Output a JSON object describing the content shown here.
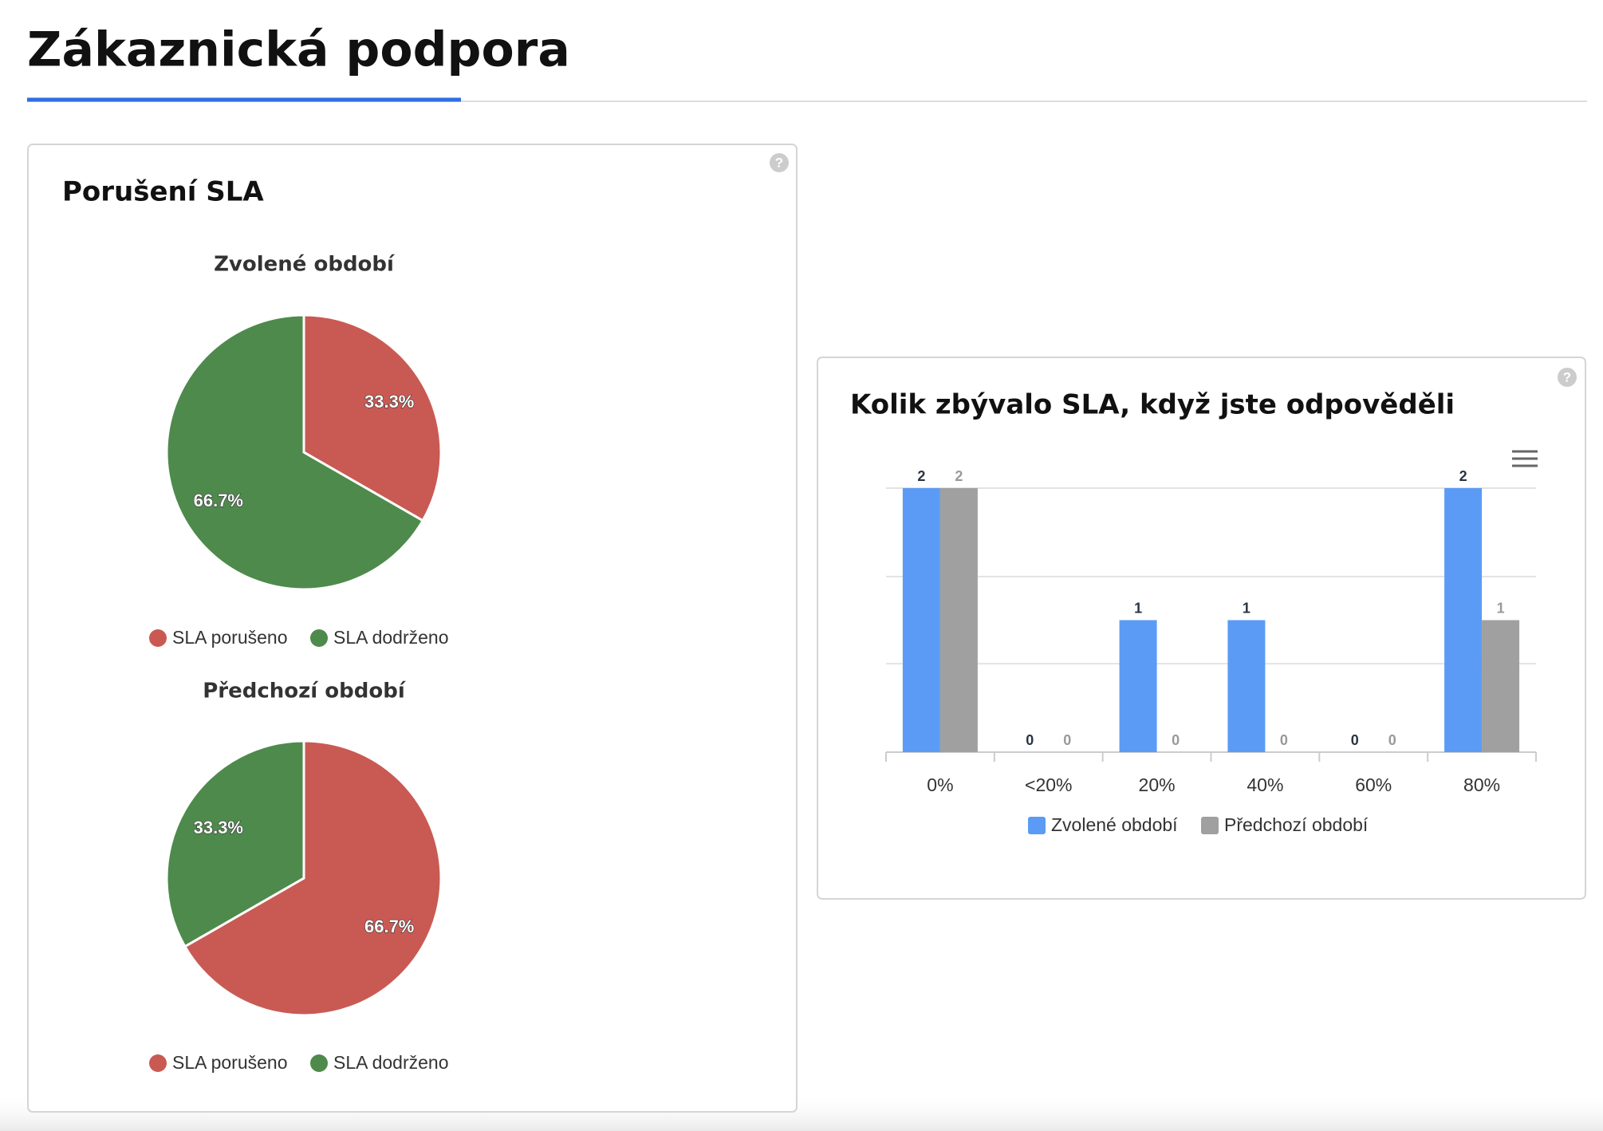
{
  "header": {
    "title": "Zákaznická podpora"
  },
  "panels": [
    {
      "title": "Porušení SLA"
    },
    {
      "title": "Kolik zbývalo SLA, když jste odpověděli"
    }
  ],
  "chart_data": [
    {
      "type": "pie",
      "title": "Zvolené období",
      "categories": [
        "SLA porušeno",
        "SLA dodrženo"
      ],
      "values": [
        33.3,
        66.7
      ],
      "value_labels": [
        "33.3%",
        "66.7%"
      ],
      "colors": [
        "#c95a53",
        "#4e8a4c"
      ]
    },
    {
      "type": "pie",
      "title": "Předchozí období",
      "categories": [
        "SLA porušeno",
        "SLA dodrženo"
      ],
      "values": [
        66.7,
        33.3
      ],
      "value_labels": [
        "66.7%",
        "33.3%"
      ],
      "colors": [
        "#c95a53",
        "#4e8a4c"
      ]
    },
    {
      "type": "bar",
      "categories": [
        "0%",
        "<20%",
        "20%",
        "40%",
        "60%",
        "80%"
      ],
      "series": [
        {
          "name": "Zvolené období",
          "color": "#5b9bf5",
          "values": [
            2,
            0,
            1,
            1,
            0,
            2
          ]
        },
        {
          "name": "Předchozí období",
          "color": "#a0a0a0",
          "values": [
            2,
            0,
            0,
            0,
            0,
            1
          ]
        }
      ],
      "ylim": [
        0,
        2
      ],
      "yticks": [
        0,
        0.67,
        1.33,
        2
      ],
      "grid": true
    }
  ]
}
